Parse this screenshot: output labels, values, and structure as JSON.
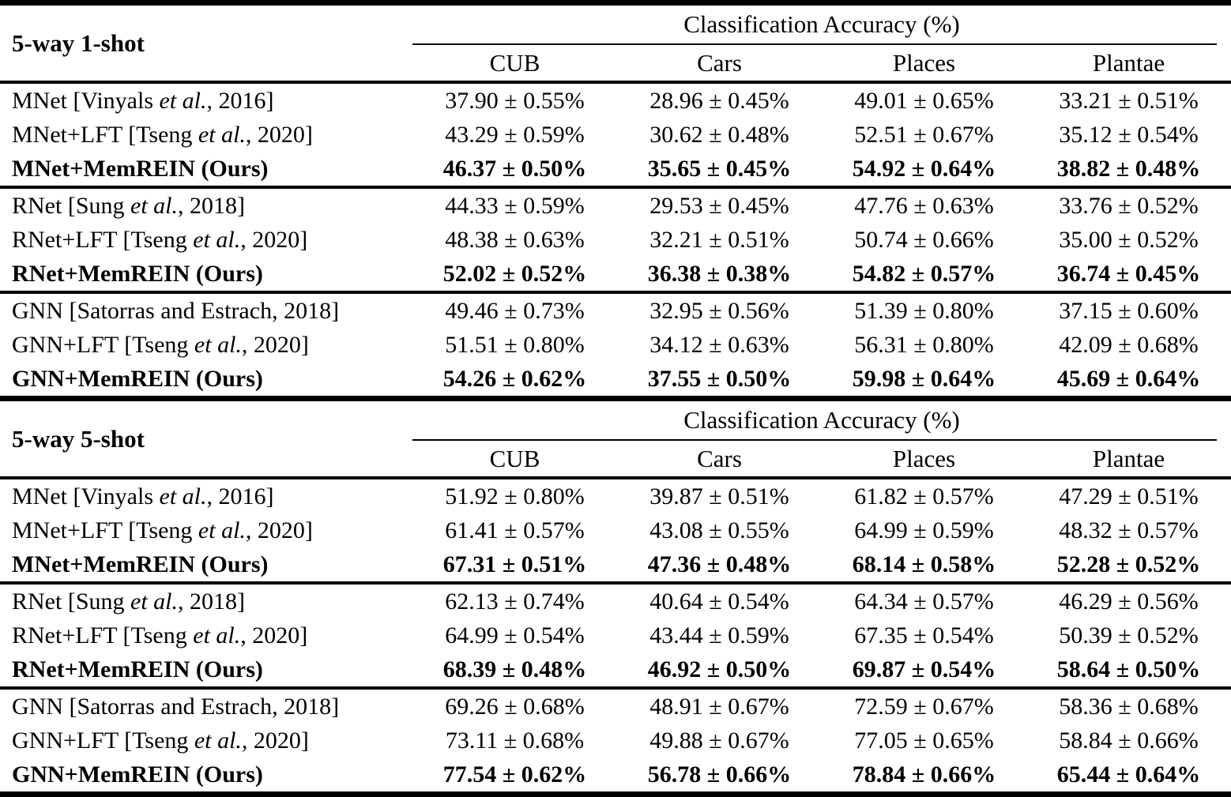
{
  "sections": [
    {
      "title": "5-way 1-shot",
      "accuracy_header": "Classification Accuracy (%)",
      "columns": [
        "CUB",
        "Cars",
        "Places",
        "Plantae"
      ],
      "groups": [
        {
          "rows": [
            {
              "label_pre": "MNet [Vinyals ",
              "label_italic": "et al.",
              "label_post": ", 2016]",
              "values": [
                "37.90 ± 0.55%",
                "28.96 ± 0.45%",
                "49.01 ± 0.65%",
                "33.21 ± 0.51%"
              ]
            },
            {
              "label_pre": "MNet+LFT [Tseng ",
              "label_italic": "et al.",
              "label_post": ", 2020]",
              "values": [
                "43.29 ± 0.59%",
                "30.62 ± 0.48%",
                "52.51 ± 0.67%",
                "35.12 ± 0.54%"
              ]
            },
            {
              "label_pre": "MNet+MemREIN (Ours)",
              "label_italic": "",
              "label_post": "",
              "values": [
                "46.37 ± 0.50%",
                "35.65 ± 0.45%",
                "54.92 ± 0.64%",
                "38.82 ± 0.48%"
              ]
            }
          ]
        },
        {
          "rows": [
            {
              "label_pre": "RNet [Sung ",
              "label_italic": "et al.",
              "label_post": ", 2018]",
              "values": [
                "44.33 ± 0.59%",
                "29.53 ± 0.45%",
                "47.76 ± 0.63%",
                "33.76 ± 0.52%"
              ]
            },
            {
              "label_pre": "RNet+LFT [Tseng ",
              "label_italic": "et al.",
              "label_post": ", 2020]",
              "values": [
                "48.38 ± 0.63%",
                "32.21 ± 0.51%",
                "50.74 ± 0.66%",
                "35.00 ± 0.52%"
              ]
            },
            {
              "label_pre": "RNet+MemREIN (Ours)",
              "label_italic": "",
              "label_post": "",
              "values": [
                "52.02 ± 0.52%",
                "36.38 ± 0.38%",
                "54.82 ± 0.57%",
                "36.74 ± 0.45%"
              ]
            }
          ]
        },
        {
          "rows": [
            {
              "label_pre": "GNN [Satorras and Estrach, 2018]",
              "label_italic": "",
              "label_post": "",
              "values": [
                "49.46 ± 0.73%",
                "32.95 ± 0.56%",
                "51.39 ± 0.80%",
                "37.15 ± 0.60%"
              ]
            },
            {
              "label_pre": "GNN+LFT [Tseng ",
              "label_italic": "et al.",
              "label_post": ", 2020]",
              "values": [
                "51.51 ± 0.80%",
                "34.12 ± 0.63%",
                "56.31 ± 0.80%",
                "42.09 ± 0.68%"
              ]
            },
            {
              "label_pre": "GNN+MemREIN (Ours)",
              "label_italic": "",
              "label_post": "",
              "values": [
                "54.26 ± 0.62%",
                "37.55 ± 0.50%",
                "59.98 ± 0.64%",
                "45.69 ± 0.64%"
              ]
            }
          ]
        }
      ]
    },
    {
      "title": "5-way 5-shot",
      "accuracy_header": "Classification Accuracy (%)",
      "columns": [
        "CUB",
        "Cars",
        "Places",
        "Plantae"
      ],
      "groups": [
        {
          "rows": [
            {
              "label_pre": "MNet [Vinyals ",
              "label_italic": "et al.",
              "label_post": ", 2016]",
              "values": [
                "51.92 ± 0.80%",
                "39.87 ± 0.51%",
                "61.82 ± 0.57%",
                "47.29 ± 0.51%"
              ]
            },
            {
              "label_pre": "MNet+LFT [Tseng ",
              "label_italic": "et al.",
              "label_post": ", 2020]",
              "values": [
                "61.41 ± 0.57%",
                "43.08 ± 0.55%",
                "64.99 ± 0.59%",
                "48.32 ± 0.57%"
              ]
            },
            {
              "label_pre": "MNet+MemREIN (Ours)",
              "label_italic": "",
              "label_post": "",
              "values": [
                "67.31 ± 0.51%",
                "47.36 ± 0.48%",
                "68.14 ± 0.58%",
                "52.28 ± 0.52%"
              ]
            }
          ]
        },
        {
          "rows": [
            {
              "label_pre": "RNet [Sung ",
              "label_italic": "et al.",
              "label_post": ", 2018]",
              "values": [
                "62.13 ± 0.74%",
                "40.64 ± 0.54%",
                "64.34 ± 0.57%",
                "46.29 ± 0.56%"
              ]
            },
            {
              "label_pre": "RNet+LFT [Tseng ",
              "label_italic": "et al.",
              "label_post": ", 2020]",
              "values": [
                "64.99 ± 0.54%",
                "43.44 ± 0.59%",
                "67.35 ± 0.54%",
                "50.39 ± 0.52%"
              ]
            },
            {
              "label_pre": "RNet+MemREIN (Ours)",
              "label_italic": "",
              "label_post": "",
              "values": [
                "68.39 ± 0.48%",
                "46.92 ± 0.50%",
                "69.87 ± 0.54%",
                "58.64 ± 0.50%"
              ]
            }
          ]
        },
        {
          "rows": [
            {
              "label_pre": "GNN [Satorras and Estrach, 2018]",
              "label_italic": "",
              "label_post": "",
              "values": [
                "69.26 ± 0.68%",
                "48.91 ± 0.67%",
                "72.59 ± 0.67%",
                "58.36 ± 0.68%"
              ]
            },
            {
              "label_pre": "GNN+LFT [Tseng ",
              "label_italic": "et al.",
              "label_post": ", 2020]",
              "values": [
                "73.11 ± 0.68%",
                "49.88 ± 0.67%",
                "77.05 ± 0.65%",
                "58.84 ± 0.66%"
              ]
            },
            {
              "label_pre": "GNN+MemREIN (Ours)",
              "label_italic": "",
              "label_post": "",
              "values": [
                "77.54 ± 0.62%",
                "56.78 ± 0.66%",
                "78.84 ± 0.66%",
                "65.44 ± 0.64%"
              ]
            }
          ]
        }
      ]
    }
  ]
}
